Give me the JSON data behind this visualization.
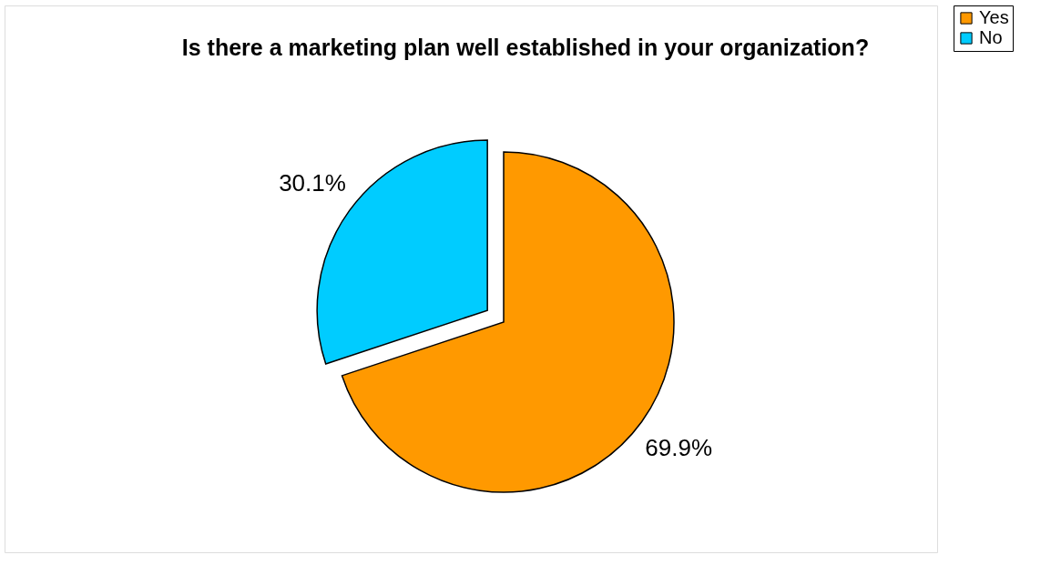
{
  "chart_data": {
    "type": "pie",
    "title": "Is there a marketing plan well established in your organization?",
    "categories": [
      "Yes",
      "No"
    ],
    "values": [
      69.9,
      30.1
    ],
    "colors": [
      "#ff9900",
      "#00ccff"
    ],
    "value_labels": [
      "69.9%",
      "30.1%"
    ],
    "legend": "right"
  }
}
